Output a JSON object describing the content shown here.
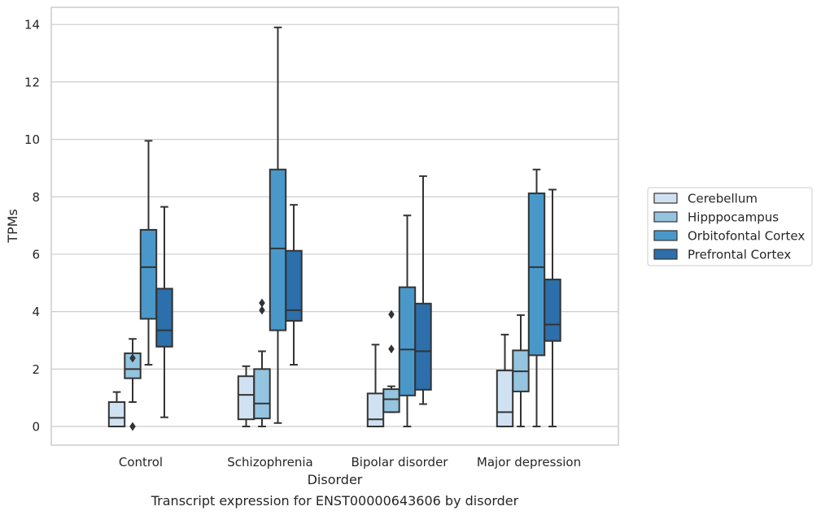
{
  "chart_data": {
    "type": "box",
    "title": "",
    "caption": "Transcript expression for ENST00000643606 by disorder",
    "xlabel": "Disorder",
    "ylabel": "TPMs",
    "ylim": [
      -0.65,
      14.6
    ],
    "yticks": [
      0,
      2,
      4,
      6,
      8,
      10,
      12,
      14
    ],
    "grid": "horizontal",
    "legend_position": "right",
    "categories": [
      "Control",
      "Schizophrenia",
      "Bipolar disorder",
      "Major depression"
    ],
    "series": [
      {
        "name": "Cerebellum",
        "color": "#d0e1f2",
        "boxes": [
          {
            "whisker_low": 0,
            "q1": 0,
            "median": 0.3,
            "q3": 0.85,
            "whisker_high": 1.2,
            "outliers": []
          },
          {
            "whisker_low": 0,
            "q1": 0.25,
            "median": 1.1,
            "q3": 1.75,
            "whisker_high": 2.1,
            "outliers": []
          },
          {
            "whisker_low": 0,
            "q1": 0,
            "median": 0.25,
            "q3": 1.15,
            "whisker_high": 2.85,
            "outliers": []
          },
          {
            "whisker_low": 0,
            "q1": 0,
            "median": 0.5,
            "q3": 1.95,
            "whisker_high": 3.2,
            "outliers": []
          }
        ]
      },
      {
        "name": "Hipppocampus",
        "color": "#94c4df",
        "boxes": [
          {
            "whisker_low": 0.85,
            "q1": 1.68,
            "median": 2.0,
            "q3": 2.55,
            "whisker_high": 3.05,
            "outliers": [
              2.38,
              0.0
            ]
          },
          {
            "whisker_low": 0,
            "q1": 0.28,
            "median": 0.8,
            "q3": 2.0,
            "whisker_high": 2.62,
            "outliers": [
              4.3,
              4.05
            ]
          },
          {
            "whisker_low": 0.5,
            "q1": 0.5,
            "median": 0.95,
            "q3": 1.3,
            "whisker_high": 1.4,
            "outliers": [
              3.9,
              2.7
            ]
          },
          {
            "whisker_low": 0,
            "q1": 1.22,
            "median": 1.92,
            "q3": 2.65,
            "whisker_high": 3.88,
            "outliers": []
          }
        ]
      },
      {
        "name": "Orbitofontal Cortex",
        "color": "#4a98c9",
        "boxes": [
          {
            "whisker_low": 2.15,
            "q1": 3.75,
            "median": 5.55,
            "q3": 6.85,
            "whisker_high": 9.95,
            "outliers": []
          },
          {
            "whisker_low": 0.12,
            "q1": 3.35,
            "median": 6.2,
            "q3": 8.95,
            "whisker_high": 13.9,
            "outliers": []
          },
          {
            "whisker_low": 0,
            "q1": 1.08,
            "median": 2.68,
            "q3": 4.85,
            "whisker_high": 7.35,
            "outliers": []
          },
          {
            "whisker_low": 0,
            "q1": 2.48,
            "median": 5.55,
            "q3": 8.12,
            "whisker_high": 8.95,
            "outliers": []
          }
        ]
      },
      {
        "name": "Prefrontal Cortex",
        "color": "#2c6fab",
        "boxes": [
          {
            "whisker_low": 0.32,
            "q1": 2.78,
            "median": 3.35,
            "q3": 4.8,
            "whisker_high": 7.65,
            "outliers": []
          },
          {
            "whisker_low": 2.15,
            "q1": 3.68,
            "median": 4.05,
            "q3": 6.12,
            "whisker_high": 7.72,
            "outliers": []
          },
          {
            "whisker_low": 0.78,
            "q1": 1.28,
            "median": 2.62,
            "q3": 4.28,
            "whisker_high": 8.72,
            "outliers": []
          },
          {
            "whisker_low": 0,
            "q1": 2.98,
            "median": 3.55,
            "q3": 5.12,
            "whisker_high": 8.25,
            "outliers": []
          }
        ]
      }
    ],
    "colors": {
      "line": "#333333",
      "grid": "#cccccc",
      "frame": "#cccccc",
      "background": "#ffffff"
    }
  }
}
